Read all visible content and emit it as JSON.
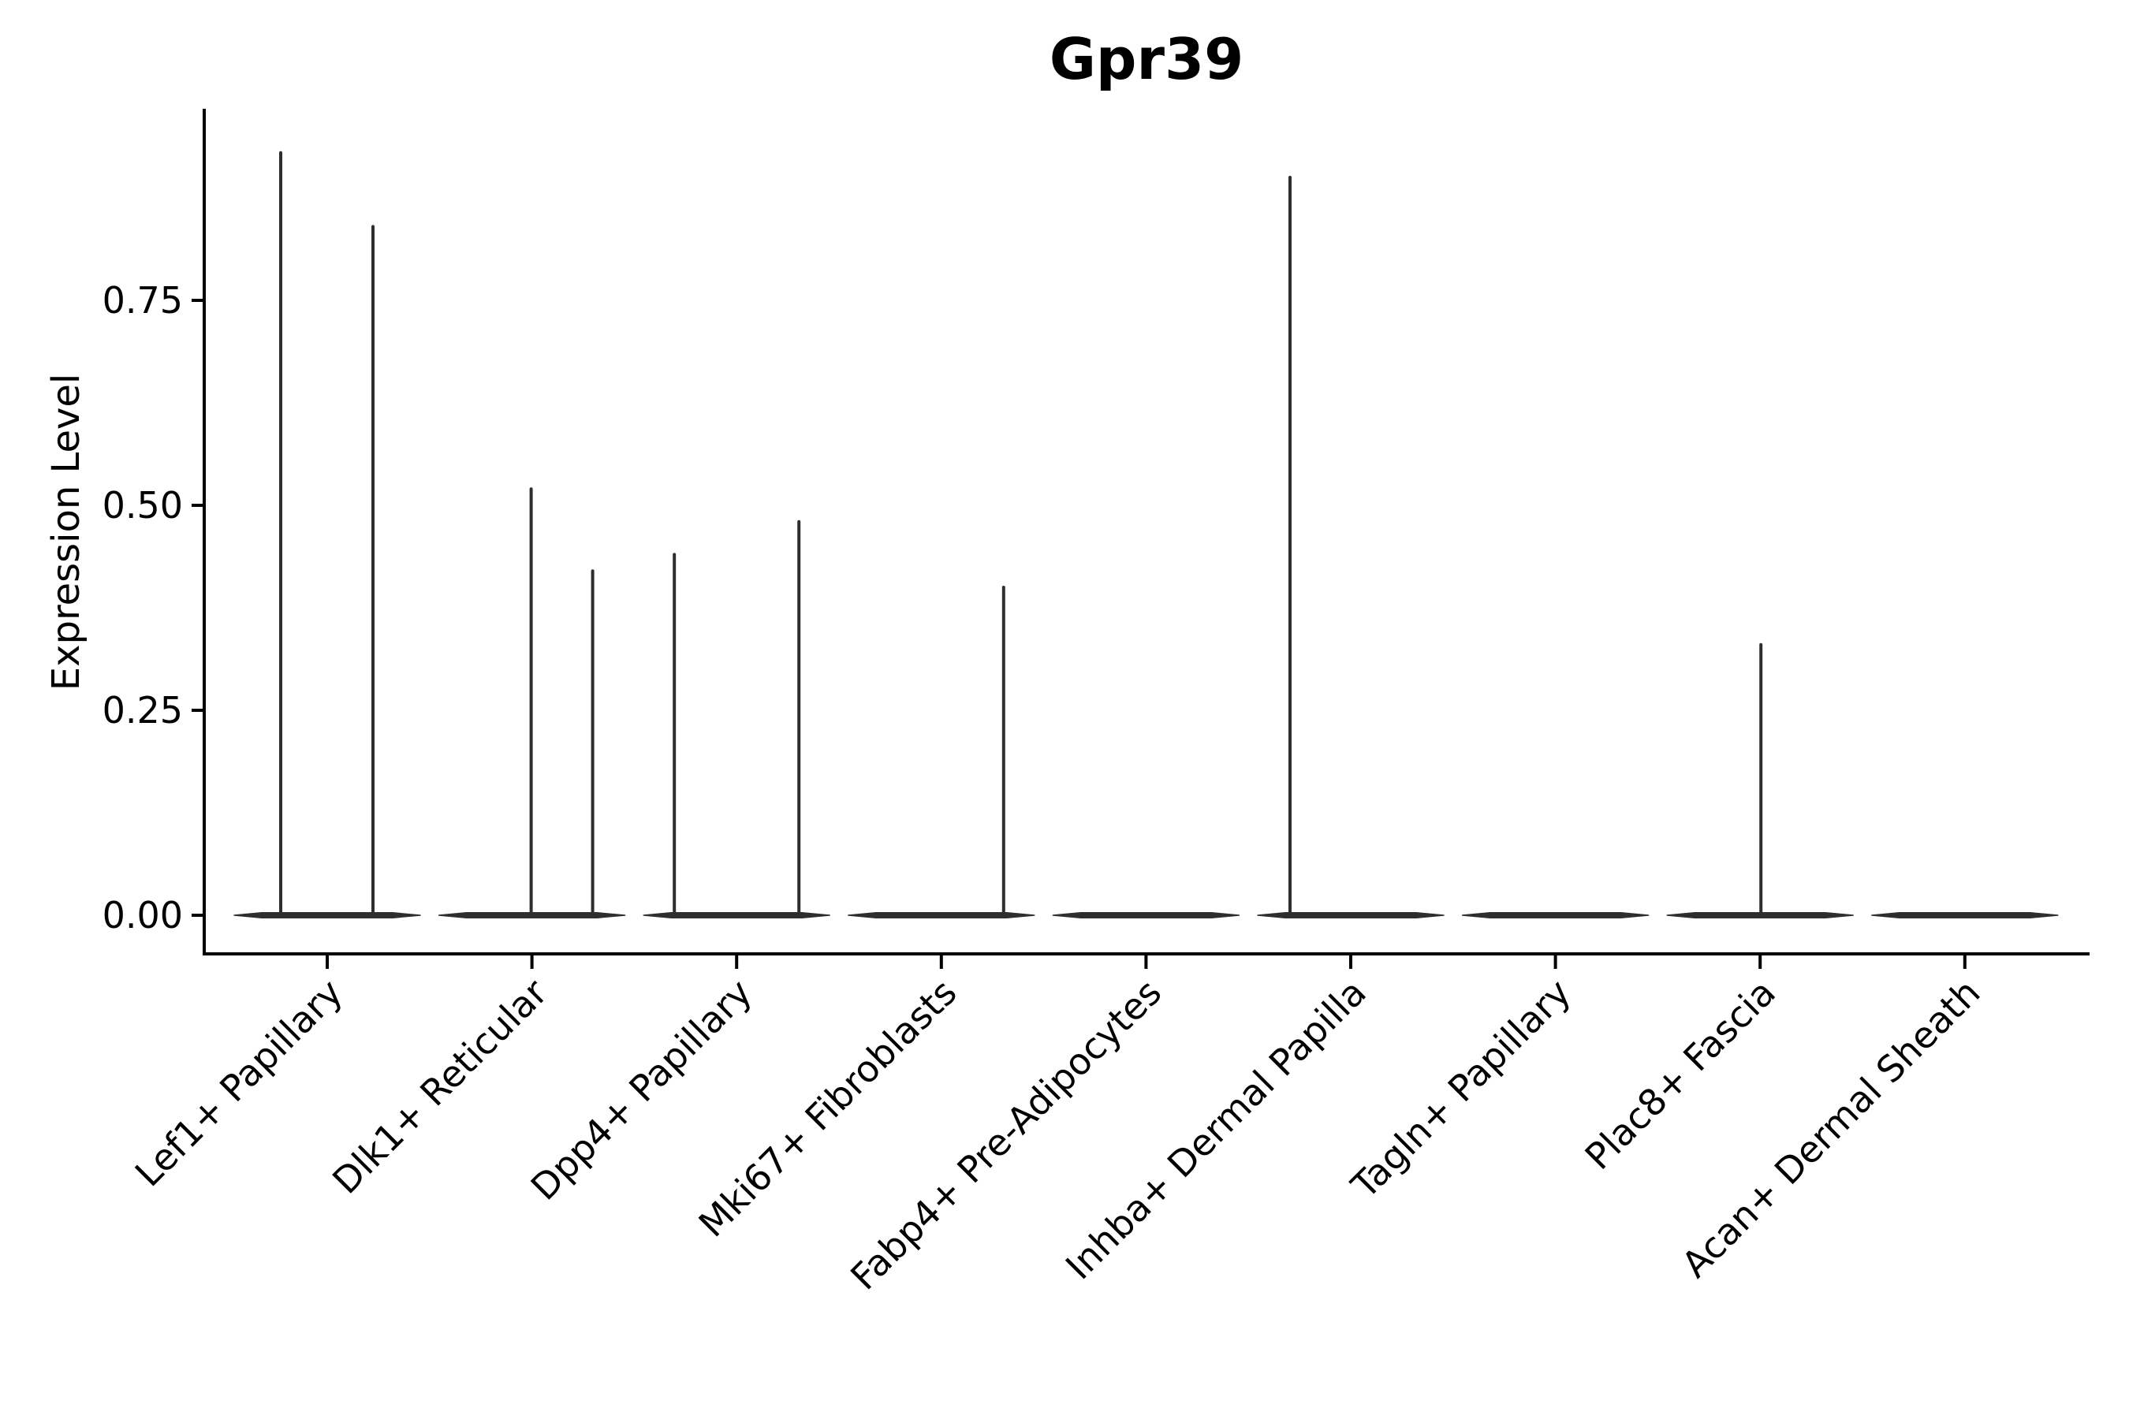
{
  "figure": {
    "background": "#ffffff"
  },
  "chart_data": {
    "type": "violin",
    "title": "Gpr39",
    "ylabel": "Expression Level",
    "xlabel": "",
    "grid": false,
    "legend": "none",
    "ylim": [
      0,
      0.98
    ],
    "yticks": [
      {
        "label": "0.00",
        "value": 0.0
      },
      {
        "label": "0.25",
        "value": 0.25
      },
      {
        "label": "0.50",
        "value": 0.5
      },
      {
        "label": "0.75",
        "value": 0.75
      }
    ],
    "categories": [
      "Lef1+ Papillary",
      "Dlk1+ Reticular",
      "Dpp4+ Papillary",
      "Mki67+ Fibroblasts",
      "Fabp4+ Pre-Adipocytes",
      "Inhba+ Dermal Papilla",
      "Tagln+ Papillary",
      "Plac8+ Fascia",
      "Acan+ Dermal Sheath"
    ],
    "violins": [
      {
        "category": "Lef1+ Papillary",
        "spikes": [
          {
            "offset": -59,
            "max": 0.93
          },
          {
            "offset": 58,
            "max": 0.84
          }
        ]
      },
      {
        "category": "Dlk1+ Reticular",
        "spikes": [
          {
            "offset": -1,
            "max": 0.52
          },
          {
            "offset": 77,
            "max": 0.42
          }
        ]
      },
      {
        "category": "Dpp4+ Papillary",
        "spikes": [
          {
            "offset": -79,
            "max": 0.44
          },
          {
            "offset": 79,
            "max": 0.48
          }
        ]
      },
      {
        "category": "Mki67+ Fibroblasts",
        "spikes": [
          {
            "offset": 79,
            "max": 0.4
          }
        ]
      },
      {
        "category": "Fabp4+ Pre-Adipocytes",
        "spikes": []
      },
      {
        "category": "Inhba+ Dermal Papilla",
        "spikes": [
          {
            "offset": -77,
            "max": 0.9
          }
        ]
      },
      {
        "category": "Tagln+ Papillary",
        "spikes": []
      },
      {
        "category": "Plac8+ Fascia",
        "spikes": [
          {
            "offset": 1,
            "max": 0.33
          }
        ]
      },
      {
        "category": "Acan+ Dermal Sheath",
        "spikes": []
      }
    ],
    "colors": {
      "violin": "#2e2e2e",
      "axis": "#000000",
      "text": "#000000"
    }
  }
}
